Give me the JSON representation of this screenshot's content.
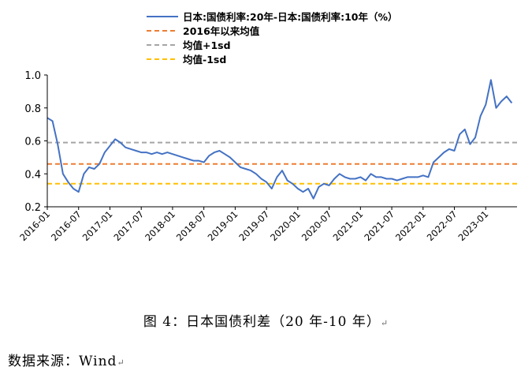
{
  "chart_data": {
    "type": "line",
    "title": "",
    "xlabel": "",
    "ylabel": "",
    "ylim": [
      0.2,
      1.0
    ],
    "y_ticks": [
      "0.2",
      "0.4",
      "0.6",
      "0.8",
      "1.0"
    ],
    "x_ticks": [
      "2016-01",
      "2016-07",
      "2017-01",
      "2017-07",
      "2018-01",
      "2018-07",
      "2019-01",
      "2019-07",
      "2020-01",
      "2020-07",
      "2021-01",
      "2021-07",
      "2022-01",
      "2022-07",
      "2023-01"
    ],
    "grid": false,
    "legend_position": "top",
    "series": [
      {
        "name": "日本:国债利率:20年-日本:国债利率:10年（%）",
        "color": "#4472C4",
        "points": [
          [
            "2016-01",
            0.74
          ],
          [
            "2016-02",
            0.72
          ],
          [
            "2016-03",
            0.58
          ],
          [
            "2016-04",
            0.4
          ],
          [
            "2016-05",
            0.35
          ],
          [
            "2016-06",
            0.31
          ],
          [
            "2016-07",
            0.29
          ],
          [
            "2016-08",
            0.4
          ],
          [
            "2016-09",
            0.44
          ],
          [
            "2016-10",
            0.43
          ],
          [
            "2016-11",
            0.46
          ],
          [
            "2016-12",
            0.53
          ],
          [
            "2017-01",
            0.57
          ],
          [
            "2017-02",
            0.61
          ],
          [
            "2017-03",
            0.59
          ],
          [
            "2017-04",
            0.56
          ],
          [
            "2017-05",
            0.55
          ],
          [
            "2017-06",
            0.54
          ],
          [
            "2017-07",
            0.53
          ],
          [
            "2017-08",
            0.53
          ],
          [
            "2017-09",
            0.52
          ],
          [
            "2017-10",
            0.53
          ],
          [
            "2017-11",
            0.52
          ],
          [
            "2017-12",
            0.53
          ],
          [
            "2018-01",
            0.52
          ],
          [
            "2018-02",
            0.51
          ],
          [
            "2018-03",
            0.5
          ],
          [
            "2018-04",
            0.49
          ],
          [
            "2018-05",
            0.48
          ],
          [
            "2018-06",
            0.48
          ],
          [
            "2018-07",
            0.47
          ],
          [
            "2018-08",
            0.51
          ],
          [
            "2018-09",
            0.53
          ],
          [
            "2018-10",
            0.54
          ],
          [
            "2018-11",
            0.52
          ],
          [
            "2018-12",
            0.5
          ],
          [
            "2019-01",
            0.47
          ],
          [
            "2019-02",
            0.44
          ],
          [
            "2019-03",
            0.43
          ],
          [
            "2019-04",
            0.42
          ],
          [
            "2019-05",
            0.4
          ],
          [
            "2019-06",
            0.37
          ],
          [
            "2019-07",
            0.35
          ],
          [
            "2019-08",
            0.31
          ],
          [
            "2019-09",
            0.38
          ],
          [
            "2019-10",
            0.42
          ],
          [
            "2019-11",
            0.36
          ],
          [
            "2019-12",
            0.34
          ],
          [
            "2020-01",
            0.31
          ],
          [
            "2020-02",
            0.29
          ],
          [
            "2020-03",
            0.31
          ],
          [
            "2020-04",
            0.25
          ],
          [
            "2020-05",
            0.32
          ],
          [
            "2020-06",
            0.34
          ],
          [
            "2020-07",
            0.33
          ],
          [
            "2020-08",
            0.37
          ],
          [
            "2020-09",
            0.4
          ],
          [
            "2020-10",
            0.38
          ],
          [
            "2020-11",
            0.37
          ],
          [
            "2020-12",
            0.37
          ],
          [
            "2021-01",
            0.38
          ],
          [
            "2021-02",
            0.36
          ],
          [
            "2021-03",
            0.4
          ],
          [
            "2021-04",
            0.38
          ],
          [
            "2021-05",
            0.38
          ],
          [
            "2021-06",
            0.37
          ],
          [
            "2021-07",
            0.37
          ],
          [
            "2021-08",
            0.36
          ],
          [
            "2021-09",
            0.37
          ],
          [
            "2021-10",
            0.38
          ],
          [
            "2021-11",
            0.38
          ],
          [
            "2021-12",
            0.38
          ],
          [
            "2022-01",
            0.39
          ],
          [
            "2022-02",
            0.38
          ],
          [
            "2022-03",
            0.47
          ],
          [
            "2022-04",
            0.5
          ],
          [
            "2022-05",
            0.53
          ],
          [
            "2022-06",
            0.55
          ],
          [
            "2022-07",
            0.54
          ],
          [
            "2022-08",
            0.64
          ],
          [
            "2022-09",
            0.67
          ],
          [
            "2022-10",
            0.58
          ],
          [
            "2022-11",
            0.62
          ],
          [
            "2022-12",
            0.75
          ],
          [
            "2023-01",
            0.82
          ],
          [
            "2023-02",
            0.97
          ],
          [
            "2023-03",
            0.8
          ],
          [
            "2023-04",
            0.84
          ],
          [
            "2023-05",
            0.87
          ],
          [
            "2023-06",
            0.83
          ]
        ]
      },
      {
        "name": "2016年以来均值",
        "color": "#ED7D31",
        "style": "dashed",
        "value": 0.46
      },
      {
        "name": "均值+1sd",
        "color": "#A5A5A5",
        "style": "dashed",
        "value": 0.59
      },
      {
        "name": "均值-1sd",
        "color": "#FFC000",
        "style": "dashed",
        "value": 0.34
      }
    ]
  },
  "caption": "图 4：日本国债利差（20 年-10 年）",
  "source": "数据来源：Wind",
  "para_mark": "↵"
}
